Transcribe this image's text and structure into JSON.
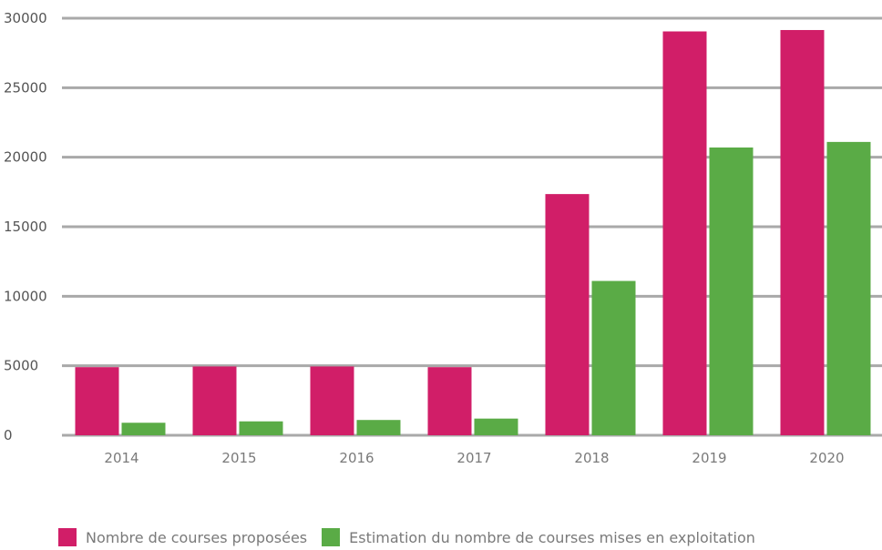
{
  "chart_data": {
    "type": "bar",
    "categories": [
      "2014",
      "2015",
      "2016",
      "2017",
      "2018",
      "2019",
      "2020"
    ],
    "series": [
      {
        "name": "Nombre de courses proposées",
        "color": "#d11e68",
        "values": [
          4900,
          4950,
          4950,
          4900,
          17350,
          29050,
          29150
        ]
      },
      {
        "name": "Estimation du nombre de courses mises en exploitation",
        "color": "#5aab46",
        "values": [
          900,
          1000,
          1100,
          1200,
          11100,
          20700,
          21100
        ]
      }
    ],
    "yticks": [
      "0",
      "5000",
      "10000",
      "15000",
      "20000",
      "25000",
      "30000"
    ],
    "ylim": [
      0,
      30000
    ],
    "grid": true,
    "legend_position": "bottom",
    "title": "",
    "xlabel": "",
    "ylabel": ""
  }
}
